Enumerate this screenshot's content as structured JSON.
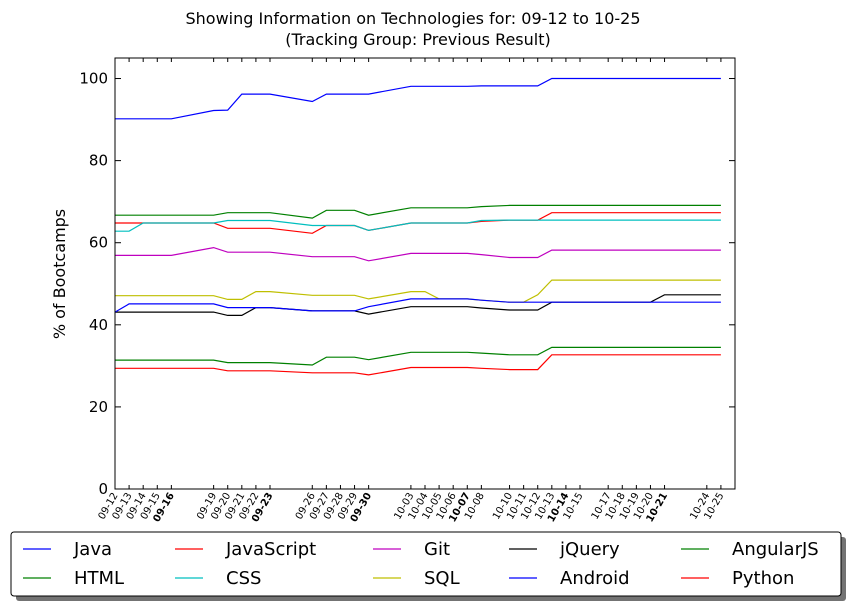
{
  "chart_data": {
    "type": "line",
    "title": "Showing Information on Technologies for: 09-12 to 10-25",
    "subtitle": "(Tracking Group: Previous Result)",
    "xlabel": "",
    "ylabel": "% of Bootcamps",
    "ylim": [
      0,
      105
    ],
    "yticks": [
      0,
      20,
      40,
      60,
      80,
      100
    ],
    "grid": false,
    "legend_position": "bottom",
    "x": [
      "09-12",
      "09-13",
      "09-14",
      "09-15",
      "09-16",
      "09-19",
      "09-20",
      "09-21",
      "09-22",
      "09-23",
      "09-26",
      "09-27",
      "09-28",
      "09-29",
      "09-30",
      "10-03",
      "10-04",
      "10-05",
      "10-06",
      "10-07",
      "10-08",
      "10-10",
      "10-11",
      "10-12",
      "10-13",
      "10-14",
      "10-15",
      "10-17",
      "10-18",
      "10-19",
      "10-20",
      "10-21",
      "10-24",
      "10-25"
    ],
    "x_days": [
      0,
      1,
      2,
      3,
      4,
      7,
      8,
      9,
      10,
      11,
      14,
      15,
      16,
      17,
      18,
      21,
      22,
      23,
      24,
      25,
      26,
      28,
      29,
      30,
      31,
      32,
      33,
      35,
      36,
      37,
      38,
      39,
      42,
      43
    ],
    "bold_ticks": [
      "09-16",
      "09-23",
      "09-30",
      "10-07",
      "10-14",
      "10-21"
    ],
    "series": [
      {
        "name": "Java",
        "color": "#0000ff",
        "values": [
          90.2,
          90.2,
          90.2,
          90.2,
          90.2,
          92.2,
          92.3,
          96.2,
          96.2,
          96.2,
          94.4,
          96.2,
          96.2,
          96.2,
          96.2,
          98.1,
          98.1,
          98.1,
          98.1,
          98.1,
          98.2,
          98.2,
          98.2,
          98.2,
          100,
          100,
          100,
          100,
          100,
          100,
          100,
          100,
          100,
          100
        ]
      },
      {
        "name": "HTML",
        "color": "#008000",
        "values": [
          66.7,
          66.7,
          66.7,
          66.7,
          66.7,
          66.7,
          67.3,
          67.3,
          67.3,
          67.3,
          66.0,
          67.9,
          67.9,
          67.9,
          66.7,
          68.5,
          68.5,
          68.5,
          68.5,
          68.5,
          68.8,
          69.1,
          69.1,
          69.1,
          69.1,
          69.1,
          69.1,
          69.1,
          69.1,
          69.1,
          69.1,
          69.1,
          69.1,
          69.1
        ]
      },
      {
        "name": "JavaScript",
        "color": "#ff0000",
        "values": [
          64.8,
          64.8,
          64.8,
          64.8,
          64.8,
          64.8,
          63.5,
          63.5,
          63.5,
          63.5,
          62.3,
          64.2,
          64.2,
          64.2,
          63.0,
          64.8,
          64.8,
          64.8,
          64.8,
          64.8,
          65.2,
          65.5,
          65.5,
          65.5,
          67.3,
          67.3,
          67.3,
          67.3,
          67.3,
          67.3,
          67.3,
          67.3,
          67.3,
          67.3
        ]
      },
      {
        "name": "CSS",
        "color": "#00bfbf",
        "values": [
          62.8,
          62.8,
          64.8,
          64.8,
          64.8,
          64.8,
          65.4,
          65.4,
          65.4,
          65.4,
          64.2,
          64.2,
          64.2,
          64.2,
          63.0,
          64.8,
          64.8,
          64.8,
          64.8,
          64.8,
          65.4,
          65.5,
          65.5,
          65.5,
          65.5,
          65.5,
          65.5,
          65.5,
          65.5,
          65.5,
          65.5,
          65.5,
          65.5,
          65.5
        ]
      },
      {
        "name": "Git",
        "color": "#bf00bf",
        "values": [
          56.9,
          56.9,
          56.9,
          56.9,
          56.9,
          58.8,
          57.7,
          57.7,
          57.7,
          57.7,
          56.6,
          56.6,
          56.6,
          56.6,
          55.6,
          57.4,
          57.4,
          57.4,
          57.4,
          57.4,
          57.1,
          56.4,
          56.4,
          56.4,
          58.2,
          58.2,
          58.2,
          58.2,
          58.2,
          58.2,
          58.2,
          58.2,
          58.2,
          58.2
        ]
      },
      {
        "name": "SQL",
        "color": "#bfbf00",
        "values": [
          47.1,
          47.1,
          47.1,
          47.1,
          47.1,
          47.1,
          46.2,
          46.2,
          48.1,
          48.1,
          47.2,
          47.2,
          47.2,
          47.2,
          46.3,
          48.1,
          48.1,
          46.3,
          46.3,
          46.3,
          46.0,
          45.5,
          45.5,
          47.3,
          50.9,
          50.9,
          50.9,
          50.9,
          50.9,
          50.9,
          50.9,
          50.9,
          50.9,
          50.9
        ]
      },
      {
        "name": "jQuery",
        "color": "#000000",
        "values": [
          43.1,
          43.1,
          43.1,
          43.1,
          43.1,
          43.1,
          42.3,
          42.3,
          44.2,
          44.2,
          43.4,
          43.4,
          43.4,
          43.4,
          42.6,
          44.4,
          44.4,
          44.4,
          44.4,
          44.4,
          44.1,
          43.6,
          43.6,
          43.6,
          45.5,
          45.5,
          45.5,
          45.5,
          45.5,
          45.5,
          45.5,
          47.3,
          47.3,
          47.3
        ]
      },
      {
        "name": "Android",
        "color": "#0000ff",
        "values": [
          43.1,
          45.1,
          45.1,
          45.1,
          45.1,
          45.1,
          44.2,
          44.2,
          44.2,
          44.2,
          43.4,
          43.4,
          43.4,
          43.4,
          44.4,
          46.3,
          46.3,
          46.3,
          46.3,
          46.3,
          46.0,
          45.5,
          45.5,
          45.5,
          45.5,
          45.5,
          45.5,
          45.5,
          45.5,
          45.5,
          45.5,
          45.5,
          45.5,
          45.5
        ]
      },
      {
        "name": "AngularJS",
        "color": "#008000",
        "values": [
          31.4,
          31.4,
          31.4,
          31.4,
          31.4,
          31.4,
          30.8,
          30.8,
          30.8,
          30.8,
          30.2,
          32.1,
          32.1,
          32.1,
          31.5,
          33.3,
          33.3,
          33.3,
          33.3,
          33.3,
          33.1,
          32.7,
          32.7,
          32.7,
          34.5,
          34.5,
          34.5,
          34.5,
          34.5,
          34.5,
          34.5,
          34.5,
          34.5,
          34.5
        ]
      },
      {
        "name": "Python",
        "color": "#ff0000",
        "values": [
          29.4,
          29.4,
          29.4,
          29.4,
          29.4,
          29.4,
          28.8,
          28.8,
          28.8,
          28.8,
          28.3,
          28.3,
          28.3,
          28.3,
          27.8,
          29.6,
          29.6,
          29.6,
          29.6,
          29.6,
          29.4,
          29.1,
          29.1,
          29.1,
          32.7,
          32.7,
          32.7,
          32.7,
          32.7,
          32.7,
          32.7,
          32.7,
          32.7,
          32.7
        ]
      }
    ],
    "legend_order": [
      "Java",
      "JavaScript",
      "Git",
      "jQuery",
      "AngularJS",
      "HTML",
      "CSS",
      "SQL",
      "Android",
      "Python"
    ]
  }
}
